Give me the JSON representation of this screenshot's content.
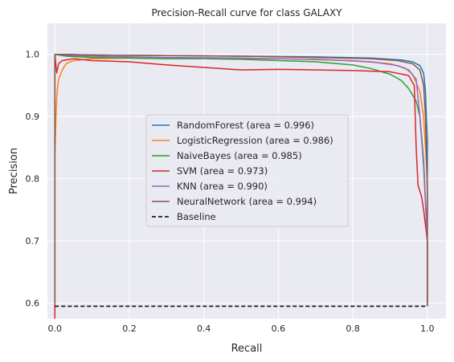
{
  "chart_data": {
    "type": "line",
    "title": "Precision-Recall curve for class GALAXY",
    "xlabel": "Recall",
    "ylabel": "Precision",
    "xlim": [
      -0.02,
      1.05
    ],
    "ylim": [
      0.575,
      1.05
    ],
    "xticks": [
      0.0,
      0.2,
      0.4,
      0.6,
      0.8,
      1.0
    ],
    "xtick_labels": [
      "0.0",
      "0.2",
      "0.4",
      "0.6",
      "0.8",
      "1.0"
    ],
    "yticks": [
      0.6,
      0.7,
      0.8,
      0.9,
      1.0
    ],
    "ytick_labels": [
      "0.6",
      "0.7",
      "0.8",
      "0.9",
      "1.0"
    ],
    "grid": true,
    "legend_position": "center",
    "series": [
      {
        "name": "RandomForest (area = 0.996)",
        "color": "#1f77b4",
        "dash": "solid",
        "x": [
          0.0,
          0.0,
          0.02,
          0.1,
          0.3,
          0.5,
          0.7,
          0.85,
          0.93,
          0.96,
          0.98,
          0.99,
          0.995,
          1.0,
          1.0
        ],
        "y": [
          0.6,
          1.0,
          1.0,
          0.999,
          0.998,
          0.997,
          0.996,
          0.994,
          0.991,
          0.988,
          0.982,
          0.97,
          0.94,
          0.86,
          0.595
        ]
      },
      {
        "name": "LogisticRegression (area = 0.986)",
        "color": "#ff7f0e",
        "dash": "solid",
        "x": [
          0.0,
          0.0,
          0.003,
          0.006,
          0.01,
          0.02,
          0.03,
          0.05,
          0.1,
          0.2,
          0.4,
          0.6,
          0.8,
          0.9,
          0.94,
          0.96,
          0.97,
          0.98,
          0.99,
          1.0,
          1.0
        ],
        "y": [
          0.6,
          0.835,
          0.9,
          0.94,
          0.96,
          0.975,
          0.985,
          0.99,
          0.993,
          0.994,
          0.994,
          0.993,
          0.99,
          0.985,
          0.978,
          0.968,
          0.955,
          0.94,
          0.9,
          0.8,
          0.595
        ]
      },
      {
        "name": "NaiveBayes (area = 0.985)",
        "color": "#2ca02c",
        "dash": "solid",
        "x": [
          0.0,
          0.0,
          0.03,
          0.1,
          0.2,
          0.3,
          0.4,
          0.5,
          0.6,
          0.7,
          0.8,
          0.85,
          0.9,
          0.93,
          0.95,
          0.97,
          0.98,
          0.99,
          1.0,
          1.0
        ],
        "y": [
          0.6,
          1.0,
          0.997,
          0.995,
          0.994,
          0.993,
          0.993,
          0.992,
          0.99,
          0.988,
          0.983,
          0.977,
          0.968,
          0.958,
          0.945,
          0.925,
          0.9,
          0.83,
          0.7,
          0.595
        ]
      },
      {
        "name": "SVM (area = 0.973)",
        "color": "#d62728",
        "dash": "solid",
        "x": [
          0.0,
          0.0,
          0.005,
          0.01,
          0.02,
          0.05,
          0.1,
          0.2,
          0.3,
          0.4,
          0.5,
          0.6,
          0.7,
          0.8,
          0.9,
          0.95,
          0.965,
          0.97,
          0.975,
          0.98,
          0.985,
          0.99,
          1.0,
          1.0
        ],
        "y": [
          0.575,
          1.0,
          0.97,
          0.985,
          0.99,
          0.993,
          0.99,
          0.988,
          0.983,
          0.979,
          0.975,
          0.976,
          0.975,
          0.974,
          0.972,
          0.966,
          0.95,
          0.85,
          0.79,
          0.78,
          0.77,
          0.75,
          0.7,
          0.595
        ]
      },
      {
        "name": "KNN (area = 0.990)",
        "color": "#9467bd",
        "dash": "solid",
        "x": [
          0.0,
          0.0,
          0.02,
          0.1,
          0.3,
          0.5,
          0.7,
          0.85,
          0.92,
          0.95,
          0.97,
          0.98,
          0.99,
          1.0,
          1.0
        ],
        "y": [
          0.6,
          1.0,
          0.999,
          0.997,
          0.995,
          0.994,
          0.992,
          0.988,
          0.982,
          0.975,
          0.96,
          0.9,
          0.82,
          0.7,
          0.595
        ]
      },
      {
        "name": "NeuralNetwork (area = 0.994)",
        "color": "#8c564b",
        "dash": "solid",
        "x": [
          0.0,
          0.0,
          0.02,
          0.1,
          0.3,
          0.5,
          0.7,
          0.85,
          0.92,
          0.96,
          0.98,
          0.99,
          0.995,
          1.0,
          1.0
        ],
        "y": [
          0.6,
          1.0,
          1.0,
          0.999,
          0.998,
          0.997,
          0.995,
          0.993,
          0.99,
          0.985,
          0.975,
          0.95,
          0.9,
          0.78,
          0.595
        ]
      },
      {
        "name": "Baseline",
        "color": "#000000",
        "dash": "dashed",
        "x": [
          0.0,
          1.0
        ],
        "y": [
          0.595,
          0.595
        ]
      }
    ]
  }
}
